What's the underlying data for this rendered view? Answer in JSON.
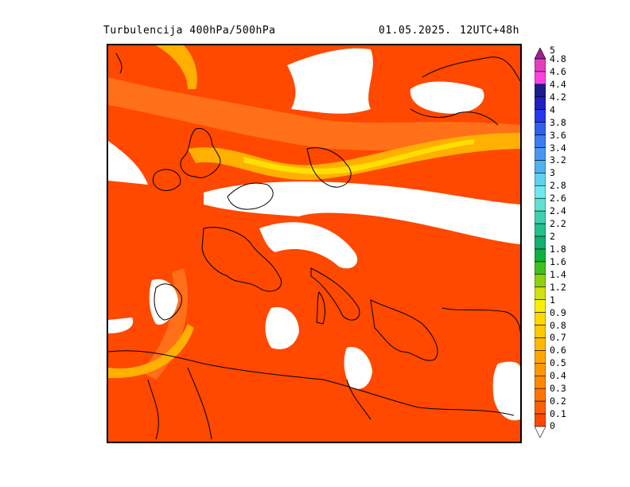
{
  "header": {
    "title": "Turbulencija 400hPa/500hPa",
    "date": "01.05.2025.",
    "run": "12UTC+48h"
  },
  "legend": {
    "levels": [
      {
        "label": "5",
        "color": "#a0208f"
      },
      {
        "label": "4.8",
        "color": "#e040c0"
      },
      {
        "label": "4.6",
        "color": "#ff40e0"
      },
      {
        "label": "4.4",
        "color": "#1c1c8c"
      },
      {
        "label": "4.2",
        "color": "#2020c0"
      },
      {
        "label": "4",
        "color": "#2838e8"
      },
      {
        "label": "3.8",
        "color": "#3060f0"
      },
      {
        "label": "3.6",
        "color": "#3c7cf0"
      },
      {
        "label": "3.4",
        "color": "#4898f0"
      },
      {
        "label": "3.2",
        "color": "#50b0f0"
      },
      {
        "label": "3",
        "color": "#60d0f0"
      },
      {
        "label": "2.8",
        "color": "#70e8f0"
      },
      {
        "label": "2.6",
        "color": "#60e0d0"
      },
      {
        "label": "2.4",
        "color": "#40d0b0"
      },
      {
        "label": "2.2",
        "color": "#20c090"
      },
      {
        "label": "2",
        "color": "#10b070"
      },
      {
        "label": "1.8",
        "color": "#10b040"
      },
      {
        "label": "1.6",
        "color": "#40c020"
      },
      {
        "label": "1.4",
        "color": "#90d010"
      },
      {
        "label": "1.2",
        "color": "#d0e010"
      },
      {
        "label": "1",
        "color": "#f8f000"
      },
      {
        "label": "0.9",
        "color": "#ffd800"
      },
      {
        "label": "0.8",
        "color": "#ffc800"
      },
      {
        "label": "0.7",
        "color": "#ffb800"
      },
      {
        "label": "0.6",
        "color": "#ffa800"
      },
      {
        "label": "0.5",
        "color": "#ff9800"
      },
      {
        "label": "0.4",
        "color": "#ff8800"
      },
      {
        "label": "0.3",
        "color": "#ff7400"
      },
      {
        "label": "0.2",
        "color": "#ff6000"
      },
      {
        "label": "0.1",
        "color": "#ff4800"
      },
      {
        "label": "0",
        "color": "#ffffff"
      }
    ]
  },
  "map": {
    "field_color": "#ff4800",
    "weak_color": "#ff7a1e",
    "jet_color": "#ffb000",
    "jet_core_color": "#ffe000",
    "no_data_color": "#ffffff",
    "coastline_color": "#000000"
  }
}
